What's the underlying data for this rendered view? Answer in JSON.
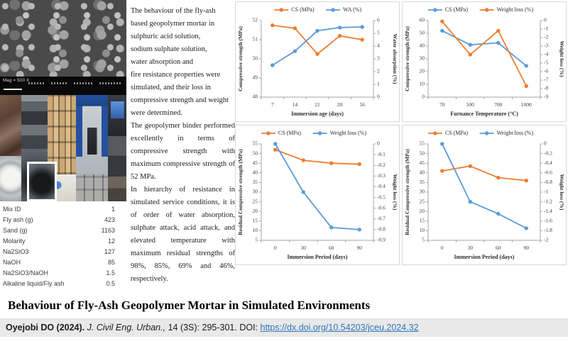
{
  "left_panel": {
    "sem": {
      "mag_label": "Mag = 500 X"
    },
    "mix_table": {
      "rows": [
        {
          "label": "Mix ID",
          "value": "1"
        },
        {
          "label": "Fly ash (g)",
          "value": "423"
        },
        {
          "label": "Sand (g)",
          "value": "1163"
        },
        {
          "label": "Molarity",
          "value": "12"
        },
        {
          "label": "Na2SiO3",
          "value": "127"
        },
        {
          "label": "NaOH",
          "value": "85"
        },
        {
          "label": "Na2SiO3/NaOH",
          "value": "1.5"
        },
        {
          "label": "Alkaline liquid/Fly ash",
          "value": "0.5"
        }
      ]
    }
  },
  "summary": {
    "p1_lines": [
      "The behaviour of the fly-ash",
      "based geopolymer mortar in",
      "sulphuric acid solution,",
      "sodium sulphate solution,",
      "water absorption and",
      "fire resistance properties were",
      "simulated, and their loss in",
      "compressive strength and weight",
      "were determined."
    ],
    "p2": "The geopolymer binder performed excellently in terms of compressive strength with maximum compressive strength of 52 MPa.",
    "p3": "In hierarchy of resistance in simulated service conditions, it is of order of water absorption, sulphate attack, acid attack, and elevated temperature with maximum residual strengths of 98%, 85%, 69% and 46%, respectively."
  },
  "chart_data": [
    {
      "type": "line",
      "x_categories": [
        "7",
        "14",
        "21",
        "28",
        "56"
      ],
      "xlabel": "Immersion age (days)",
      "left_axis": {
        "label": "Compressive strength (MPa)",
        "min": 48,
        "max": 52,
        "step": 1
      },
      "right_axis": {
        "label": "Water absorption (%)",
        "min": 0,
        "max": 6,
        "step": 1
      },
      "legend_position": "top",
      "grid": false,
      "series": [
        {
          "name": "CS (MPa)",
          "color": "#ED7D31",
          "axis": "left",
          "values": [
            51.75,
            51.6,
            50.25,
            51.2,
            51.0
          ]
        },
        {
          "name": "WA (%)",
          "color": "#5B9BD5",
          "axis": "right",
          "values": [
            2.5,
            3.6,
            5.2,
            5.45,
            5.5
          ]
        }
      ]
    },
    {
      "type": "line",
      "x_categories": [
        "70",
        "500",
        "700",
        "1000"
      ],
      "xlabel": "Furnance Temperature (°C)",
      "left_axis": {
        "label": "Compressive strength (MPa)",
        "min": 0,
        "max": 60,
        "step": 10
      },
      "right_axis": {
        "label": "Weight loss (%)",
        "min": -9,
        "max": 0,
        "step": 1
      },
      "legend_position": "top",
      "grid": false,
      "series": [
        {
          "name": "CS (MPa)",
          "color": "#5B9BD5",
          "axis": "left",
          "values": [
            52,
            41,
            42.5,
            24.5
          ]
        },
        {
          "name": "Weight loss (%)",
          "color": "#ED7D31",
          "axis": "right",
          "values": [
            -0.1,
            -4.0,
            -1.2,
            -7.7
          ]
        }
      ]
    },
    {
      "type": "line",
      "x_categories": [
        "0",
        "30",
        "60",
        "90"
      ],
      "xlabel": "Immersion Period (days)",
      "left_axis": {
        "label": "Residual Compressive strength (MPa)",
        "min": 5,
        "max": 55,
        "step": 5
      },
      "right_axis": {
        "label": "Weight loss (%)",
        "min": -0.9,
        "max": 0,
        "step": 0.1
      },
      "legend_position": "top",
      "grid": false,
      "series": [
        {
          "name": "CS (MPa)",
          "color": "#ED7D31",
          "axis": "left",
          "values": [
            52,
            46.5,
            45,
            44.5
          ]
        },
        {
          "name": "Weight loss (%)",
          "color": "#5B9BD5",
          "axis": "right",
          "values": [
            0,
            -0.45,
            -0.78,
            -0.8
          ]
        }
      ]
    },
    {
      "type": "line",
      "x_categories": [
        "0",
        "30",
        "60",
        "90"
      ],
      "xlabel": "Immersion Period (days)",
      "left_axis": {
        "label": "Residual Compressive strength (MPa)",
        "min": 5,
        "max": 55,
        "step": 5
      },
      "right_axis": {
        "label": "Weight loss (%)",
        "min": -2,
        "max": 0,
        "step": 0.2
      },
      "legend_position": "top",
      "grid": false,
      "series": [
        {
          "name": "CS (MPa)",
          "color": "#ED7D31",
          "axis": "left",
          "values": [
            41,
            43.5,
            37.5,
            36
          ]
        },
        {
          "name": "Weight loss (%)",
          "color": "#5B9BD5",
          "axis": "right",
          "values": [
            0,
            -1.2,
            -1.45,
            -1.75
          ]
        }
      ]
    }
  ],
  "footer": {
    "title": "Behaviour of Fly-Ash Geopolymer Mortar in Simulated Environments",
    "citation": {
      "authors": "Oyejobi DO (2024).",
      "journal": " J. Civil Eng. Urban., ",
      "details": " 14 (3S): 295-301. DOI: ",
      "doi": "https://dx.doi.org/10.54203/jceu.2024.32"
    }
  },
  "colors": {
    "series_orange": "#ED7D31",
    "series_blue": "#5B9BD5",
    "citation_bar": "#e9e9e9",
    "link": "#2e75b6"
  }
}
